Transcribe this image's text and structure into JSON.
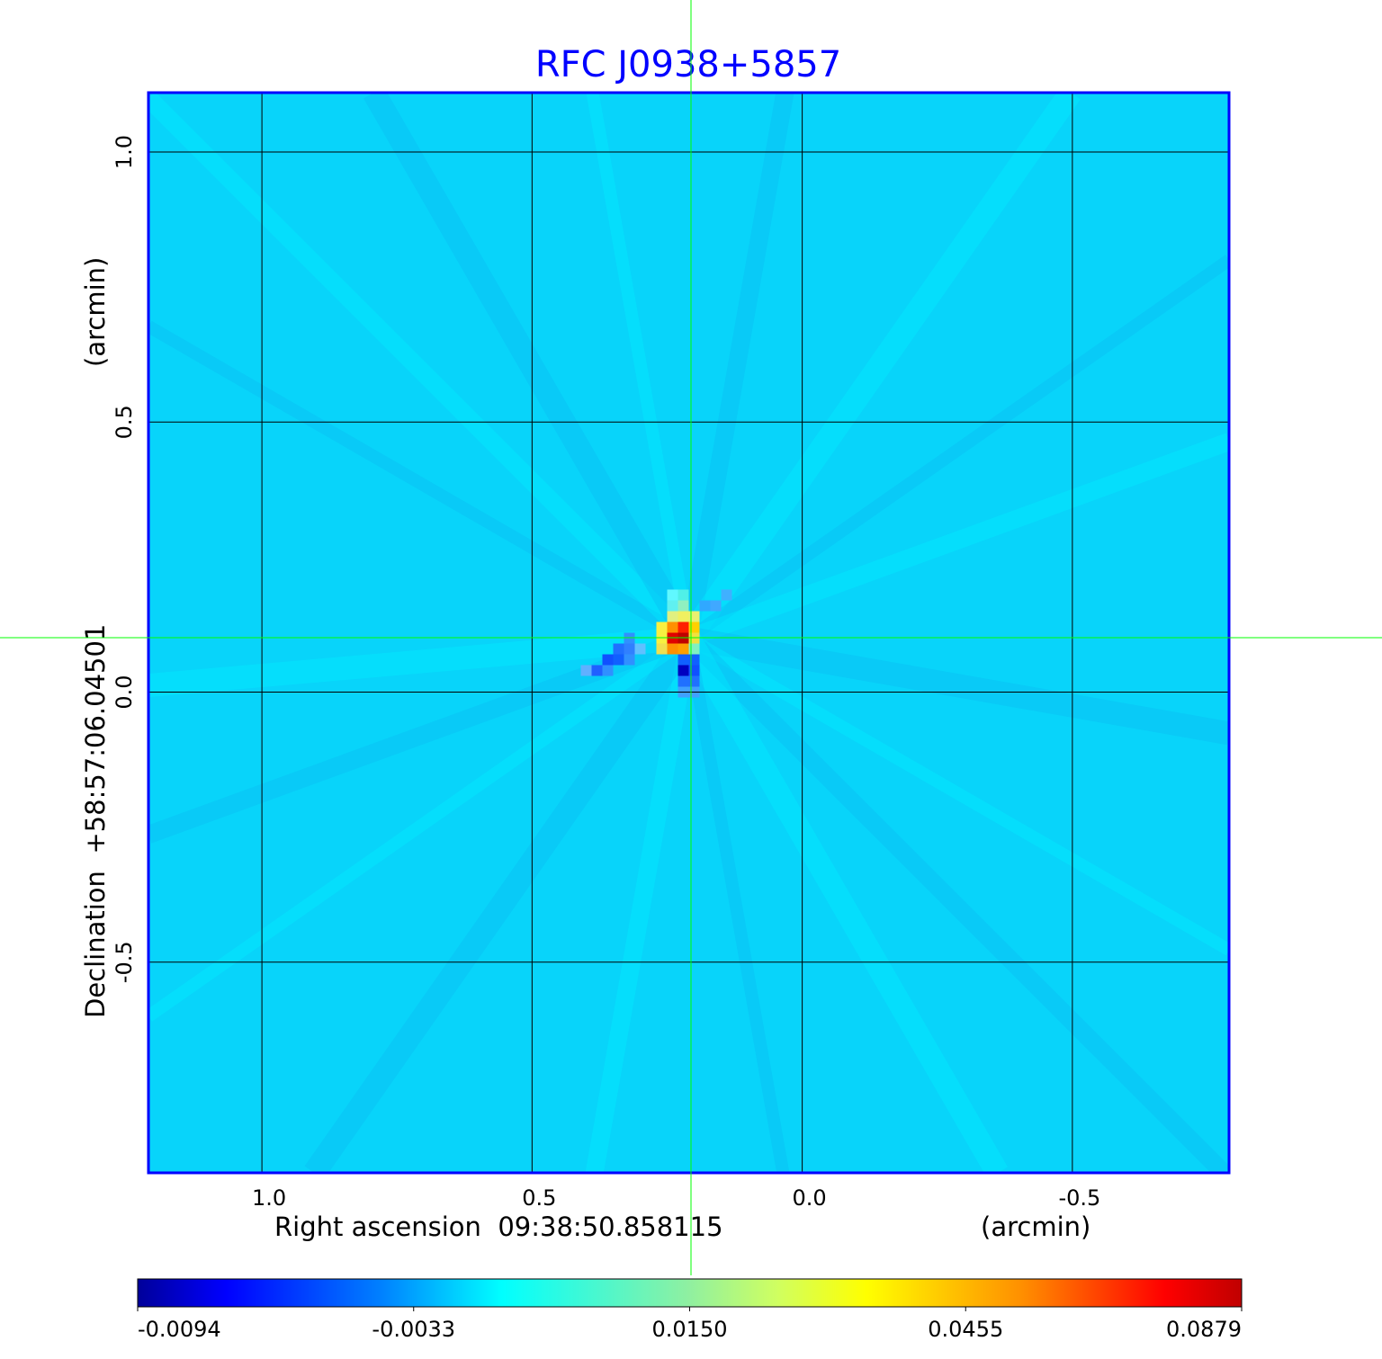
{
  "chart_data": {
    "type": "heatmap",
    "title": "RFC J0938+5857",
    "title_color": "#0000ff",
    "xlabel": "Right ascension  09:38:50.858115",
    "xunit": "(arcmin)",
    "ylabel": "Declination  +58:57:06.04501",
    "yunit": "(arcmin)",
    "xlim": [
      1.21,
      -0.79
    ],
    "ylim": [
      -0.89,
      1.11
    ],
    "xticks": [
      1.0,
      0.5,
      0.0,
      -0.5
    ],
    "xtick_labels": [
      "1.0",
      "0.5",
      "0.0",
      "-0.5"
    ],
    "yticks": [
      1.0,
      0.5,
      0.0,
      -0.5
    ],
    "ytick_labels": [
      "1.0",
      "0.5",
      "0.0",
      "-0.5"
    ],
    "grid": true,
    "grid_color": "#000000",
    "frame_color": "#0000ff",
    "crosshair_color": "#00ff00",
    "crosshair": {
      "x": 0.21,
      "y": 0.1
    },
    "colormap": "jet",
    "colorbar": {
      "ticks": [
        -0.0094,
        -0.0033,
        0.015,
        0.0455,
        0.0879
      ],
      "tick_labels": [
        "-0.0094",
        "-0.0033",
        "0.0150",
        "0.0455",
        "0.0879"
      ],
      "placement": "bottom"
    }
  }
}
